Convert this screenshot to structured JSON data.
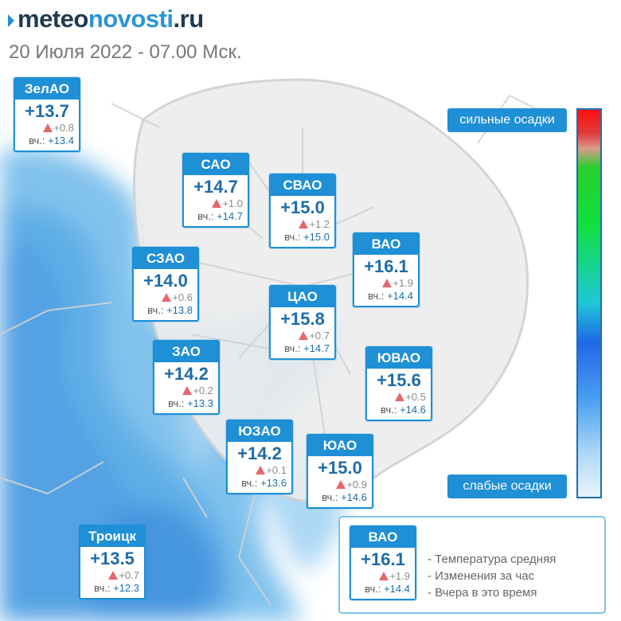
{
  "brand": {
    "part1": "meteo",
    "part2": "novosti",
    "part3": ".ru"
  },
  "subtitle": "20 Июля 2022 - 07.00 Мск.",
  "scale": {
    "top_label": "сильные осадки",
    "bottom_label": "слабые осадки"
  },
  "colors": {
    "accent": "#1f8fd6",
    "temp_text": "#1e6ca8",
    "rise_arrow": "#e8666a"
  },
  "districts": [
    {
      "name": "ЗелАО",
      "temp": "+13.7",
      "change": "+0.8",
      "yesterday_label": "вч.: ",
      "yesterday": "+13.4"
    },
    {
      "name": "САО",
      "temp": "+14.7",
      "change": "+1.0",
      "yesterday_label": "вч.: ",
      "yesterday": "+14.7"
    },
    {
      "name": "СВАО",
      "temp": "+15.0",
      "change": "+1.2",
      "yesterday_label": "вч.: ",
      "yesterday": "+15.0"
    },
    {
      "name": "ВАО",
      "temp": "+16.1",
      "change": "+1.9",
      "yesterday_label": "вч.: ",
      "yesterday": "+14.4"
    },
    {
      "name": "СЗАО",
      "temp": "+14.0",
      "change": "+0.6",
      "yesterday_label": "вч.: ",
      "yesterday": "+13.8"
    },
    {
      "name": "ЦАО",
      "temp": "+15.8",
      "change": "+0.7",
      "yesterday_label": "вч.: ",
      "yesterday": "+14.7"
    },
    {
      "name": "ЗАО",
      "temp": "+14.2",
      "change": "+0.2",
      "yesterday_label": "вч.: ",
      "yesterday": "+13.3"
    },
    {
      "name": "ЮВАО",
      "temp": "+15.6",
      "change": "+0.5",
      "yesterday_label": "вч.: ",
      "yesterday": "+14.6"
    },
    {
      "name": "ЮЗАО",
      "temp": "+14.2",
      "change": "+0.1",
      "yesterday_label": "вч.: ",
      "yesterday": "+13.6"
    },
    {
      "name": "ЮАО",
      "temp": "+15.0",
      "change": "+0.9",
      "yesterday_label": "вч.: ",
      "yesterday": "+14.6"
    },
    {
      "name": "Троицк",
      "temp": "+13.5",
      "change": "+0.7",
      "yesterday_label": "вч.: ",
      "yesterday": "+12.3"
    }
  ],
  "legend": {
    "sample": {
      "name": "ВАО",
      "temp": "+16.1",
      "change": "+1.9",
      "yesterday_label": "вч.: ",
      "yesterday": "+14.4"
    },
    "items": [
      "- Температура средняя",
      "- Изменения за час",
      "- Вчера в это время"
    ]
  }
}
